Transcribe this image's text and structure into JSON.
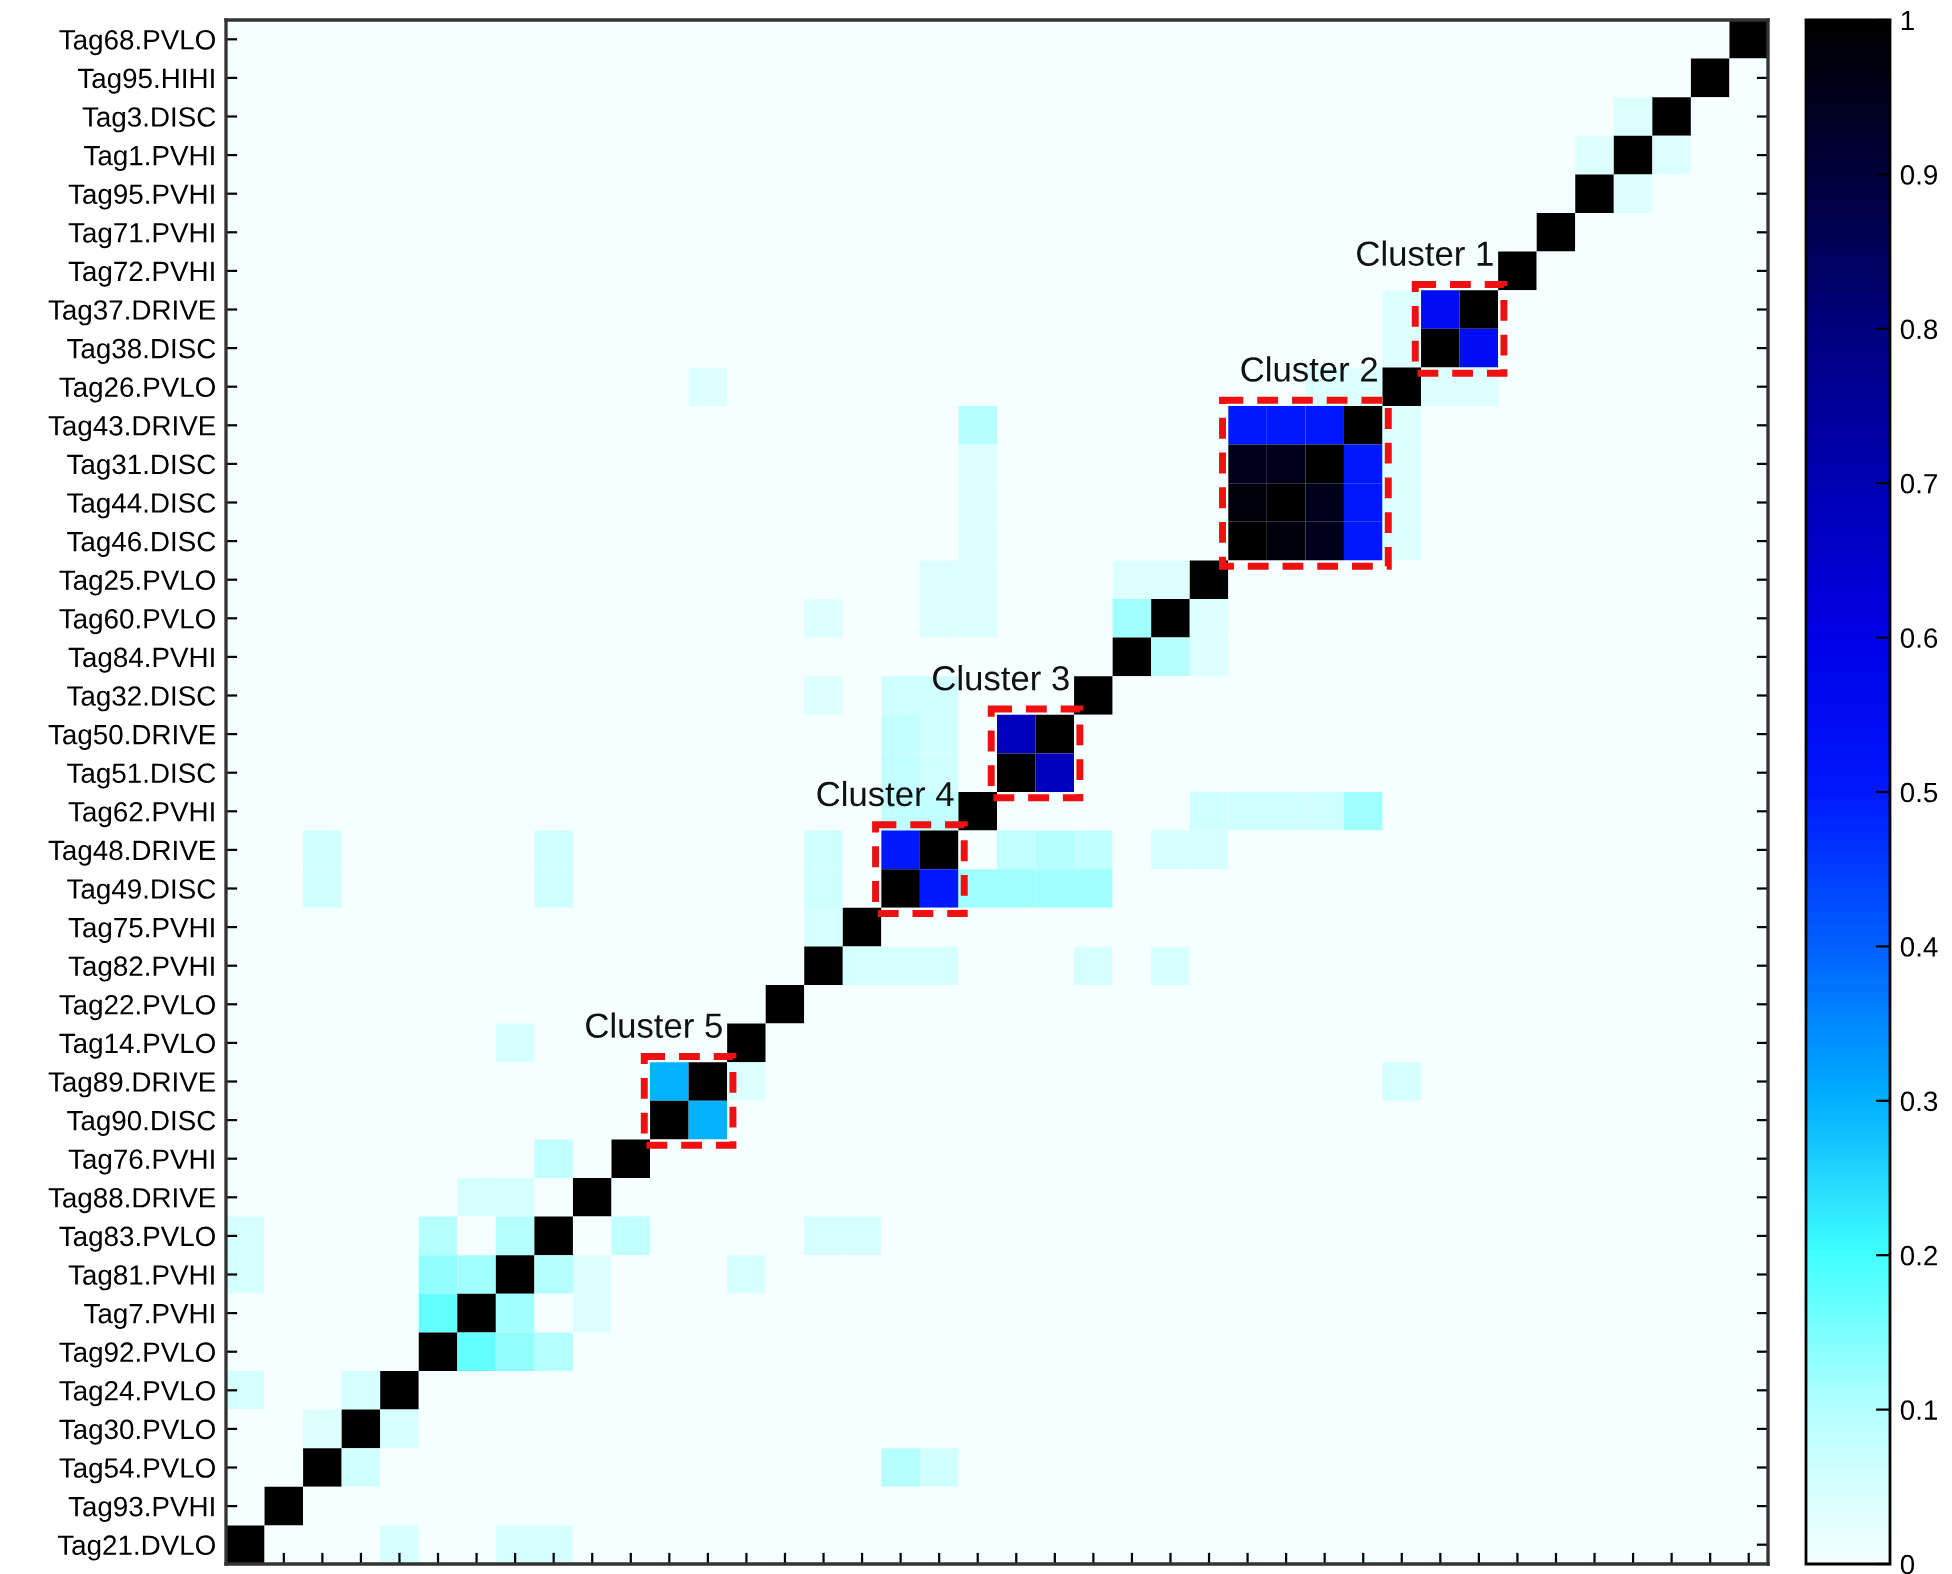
{
  "chart_data": {
    "type": "heatmap",
    "categories": [
      null,
      null,
      null,
      null,
      null,
      null,
      null,
      null,
      null,
      null,
      null,
      null,
      null,
      null,
      null,
      null,
      null,
      null,
      null,
      null,
      null,
      null,
      null,
      null,
      null,
      null,
      null,
      null,
      null,
      null,
      null,
      null,
      null,
      null,
      null,
      null,
      null,
      null,
      null,
      null
    ],
    "y_categories": [
      "Tag68.PVLO",
      "Tag95.HIHI",
      "Tag3.DISC",
      "Tag1.PVHI",
      "Tag95.PVHI",
      "Tag71.PVHI",
      "Tag72.PVHI",
      "Tag37.DRIVE",
      "Tag38.DISC",
      "Tag26.PVLO",
      "Tag43.DRIVE",
      "Tag31.DISC",
      "Tag44.DISC",
      "Tag46.DISC",
      "Tag25.PVLO",
      "Tag60.PVLO",
      "Tag84.PVHI",
      "Tag32.DISC",
      "Tag50.DRIVE",
      "Tag51.DISC",
      "Tag62.PVHI",
      "Tag48.DRIVE",
      "Tag49.DISC",
      "Tag75.PVHI",
      "Tag82.PVHI",
      "Tag22.PVLO",
      "Tag14.PVLO",
      "Tag89.DRIVE",
      "Tag90.DISC",
      "Tag76.PVHI",
      "Tag88.DRIVE",
      "Tag83.PVLO",
      "Tag81.PVHI",
      "Tag7.PVHI",
      "Tag92.PVLO",
      "Tag24.PVLO",
      "Tag30.PVLO",
      "Tag54.PVLO",
      "Tag93.PVHI",
      "Tag21.DVLO"
    ],
    "cells": [
      [
        0,
        0,
        0,
        0,
        0,
        0,
        0,
        0,
        0,
        0,
        0,
        0,
        0,
        0,
        0,
        0,
        0,
        0,
        0,
        0,
        0,
        0,
        0,
        0,
        0,
        0,
        0,
        0,
        0,
        0,
        0,
        0,
        0,
        0,
        0,
        0,
        0,
        0,
        0,
        1
      ],
      [
        0,
        0,
        0,
        0,
        0,
        0,
        0,
        0,
        0,
        0,
        0,
        0,
        0,
        0,
        0,
        0,
        0,
        0,
        0,
        0,
        0,
        0,
        0,
        0,
        0,
        0,
        0,
        0,
        0,
        0,
        0,
        0,
        0,
        0,
        0,
        0,
        0,
        0,
        1,
        0
      ],
      [
        0,
        0,
        0,
        0,
        0,
        0,
        0,
        0,
        0,
        0,
        0,
        0,
        0,
        0,
        0,
        0,
        0,
        0,
        0,
        0,
        0,
        0,
        0,
        0,
        0,
        0,
        0,
        0,
        0,
        0,
        0,
        0,
        0,
        0,
        0,
        0,
        0.04,
        1,
        0,
        0
      ],
      [
        0,
        0,
        0,
        0,
        0,
        0,
        0,
        0,
        0,
        0,
        0,
        0,
        0,
        0,
        0,
        0,
        0,
        0,
        0,
        0,
        0,
        0,
        0,
        0,
        0,
        0,
        0,
        0,
        0,
        0,
        0,
        0,
        0,
        0,
        0,
        0.04,
        1,
        0.04,
        0,
        0
      ],
      [
        0,
        0,
        0,
        0,
        0,
        0,
        0,
        0,
        0,
        0,
        0,
        0,
        0,
        0,
        0,
        0,
        0,
        0,
        0,
        0,
        0,
        0,
        0,
        0,
        0,
        0,
        0,
        0,
        0,
        0,
        0,
        0,
        0,
        0,
        0,
        1,
        0.04,
        0,
        0,
        0
      ],
      [
        0,
        0,
        0,
        0,
        0,
        0,
        0,
        0,
        0,
        0,
        0,
        0,
        0,
        0,
        0,
        0,
        0,
        0,
        0,
        0,
        0,
        0,
        0,
        0,
        0,
        0,
        0,
        0,
        0,
        0,
        0,
        0,
        0,
        0,
        1,
        0,
        0,
        0,
        0,
        0
      ],
      [
        0,
        0,
        0,
        0,
        0,
        0,
        0,
        0,
        0,
        0,
        0,
        0,
        0,
        0,
        0,
        0,
        0,
        0,
        0,
        0,
        0,
        0,
        0,
        0,
        0,
        0,
        0,
        0,
        0,
        0,
        0,
        0,
        0,
        1,
        0,
        0,
        0,
        0,
        0,
        0
      ],
      [
        0,
        0,
        0,
        0,
        0,
        0,
        0,
        0,
        0,
        0,
        0,
        0,
        0,
        0,
        0,
        0,
        0,
        0,
        0,
        0,
        0,
        0,
        0,
        0,
        0,
        0,
        0,
        0,
        0,
        0,
        0.04,
        0.55,
        1,
        0,
        0,
        0,
        0,
        0,
        0,
        0
      ],
      [
        0,
        0,
        0,
        0,
        0,
        0,
        0,
        0,
        0,
        0,
        0,
        0,
        0,
        0,
        0,
        0,
        0,
        0,
        0,
        0,
        0,
        0,
        0,
        0,
        0,
        0,
        0,
        0,
        0,
        0,
        0.04,
        1,
        0.55,
        0,
        0,
        0,
        0,
        0,
        0,
        0
      ],
      [
        0,
        0,
        0,
        0,
        0,
        0,
        0,
        0,
        0,
        0,
        0,
        0,
        0.04,
        0,
        0,
        0,
        0,
        0,
        0,
        0,
        0,
        0,
        0,
        0,
        0,
        0,
        0,
        0,
        0.04,
        0.04,
        1,
        0.04,
        0.04,
        0,
        0,
        0,
        0,
        0,
        0,
        0
      ],
      [
        0,
        0,
        0,
        0,
        0,
        0,
        0,
        0,
        0,
        0,
        0,
        0,
        0,
        0,
        0,
        0,
        0,
        0,
        0,
        0.1,
        0,
        0,
        0,
        0,
        0,
        0,
        0.5,
        0.5,
        0.5,
        1,
        0.04,
        0,
        0,
        0,
        0,
        0,
        0,
        0,
        0,
        0
      ],
      [
        0,
        0,
        0,
        0,
        0,
        0,
        0,
        0,
        0,
        0,
        0,
        0,
        0,
        0,
        0,
        0,
        0,
        0,
        0,
        0.04,
        0,
        0,
        0,
        0,
        0,
        0,
        0.95,
        0.95,
        1,
        0.5,
        0.04,
        0,
        0,
        0,
        0,
        0,
        0,
        0,
        0,
        0
      ],
      [
        0,
        0,
        0,
        0,
        0,
        0,
        0,
        0,
        0,
        0,
        0,
        0,
        0,
        0,
        0,
        0,
        0,
        0,
        0,
        0.04,
        0,
        0,
        0,
        0,
        0,
        0,
        0.98,
        1,
        0.95,
        0.5,
        0.04,
        0,
        0,
        0,
        0,
        0,
        0,
        0,
        0,
        0
      ],
      [
        0,
        0,
        0,
        0,
        0,
        0,
        0,
        0,
        0,
        0,
        0,
        0,
        0,
        0,
        0,
        0,
        0,
        0,
        0,
        0.04,
        0,
        0,
        0,
        0,
        0,
        0,
        1,
        0.98,
        0.95,
        0.5,
        0.04,
        0,
        0,
        0,
        0,
        0,
        0,
        0,
        0,
        0
      ],
      [
        0,
        0,
        0,
        0,
        0,
        0,
        0,
        0,
        0,
        0,
        0,
        0,
        0,
        0,
        0,
        0,
        0,
        0,
        0.04,
        0.04,
        0,
        0,
        0,
        0.04,
        0.04,
        1,
        0,
        0,
        0,
        0,
        0,
        0,
        0,
        0,
        0,
        0,
        0,
        0,
        0,
        0
      ],
      [
        0,
        0,
        0,
        0,
        0,
        0,
        0,
        0,
        0,
        0,
        0,
        0,
        0,
        0,
        0,
        0.04,
        0,
        0,
        0.04,
        0.04,
        0,
        0,
        0,
        0.12,
        1,
        0.04,
        0,
        0,
        0,
        0,
        0,
        0,
        0,
        0,
        0,
        0,
        0,
        0,
        0,
        0
      ],
      [
        0,
        0,
        0,
        0,
        0,
        0,
        0,
        0,
        0,
        0,
        0,
        0,
        0,
        0,
        0,
        0,
        0,
        0,
        0,
        0,
        0,
        0,
        0,
        1,
        0.1,
        0.04,
        0,
        0,
        0,
        0,
        0,
        0,
        0,
        0,
        0,
        0,
        0,
        0,
        0,
        0
      ],
      [
        0,
        0,
        0,
        0,
        0,
        0,
        0,
        0,
        0,
        0,
        0,
        0,
        0,
        0,
        0,
        0.04,
        0,
        0.06,
        0.06,
        0,
        0,
        0,
        1,
        0,
        0,
        0,
        0,
        0,
        0,
        0,
        0,
        0,
        0,
        0,
        0,
        0,
        0,
        0,
        0,
        0
      ],
      [
        0,
        0,
        0,
        0,
        0,
        0,
        0,
        0,
        0,
        0,
        0,
        0,
        0,
        0,
        0,
        0,
        0,
        0.08,
        0.06,
        0,
        0.68,
        1,
        0,
        0,
        0,
        0,
        0,
        0,
        0,
        0,
        0,
        0,
        0,
        0,
        0,
        0,
        0,
        0,
        0,
        0
      ],
      [
        0,
        0,
        0,
        0,
        0,
        0,
        0,
        0,
        0,
        0,
        0,
        0,
        0,
        0,
        0,
        0,
        0,
        0.08,
        0.06,
        0,
        1,
        0.68,
        0,
        0,
        0,
        0,
        0,
        0,
        0,
        0,
        0,
        0,
        0,
        0,
        0,
        0,
        0,
        0,
        0,
        0
      ],
      [
        0,
        0,
        0,
        0,
        0,
        0,
        0,
        0,
        0,
        0,
        0,
        0,
        0,
        0,
        0,
        0,
        0,
        0.08,
        0.08,
        1,
        0,
        0,
        0,
        0,
        0,
        0.06,
        0.06,
        0.06,
        0.06,
        0.12,
        0,
        0,
        0,
        0,
        0,
        0,
        0,
        0,
        0,
        0
      ],
      [
        0,
        0,
        0.06,
        0,
        0,
        0,
        0,
        0,
        0.06,
        0,
        0,
        0,
        0,
        0,
        0,
        0.06,
        0,
        0.5,
        1,
        0,
        0.08,
        0.1,
        0.08,
        0,
        0.05,
        0.05,
        0,
        0,
        0,
        0,
        0,
        0,
        0,
        0,
        0,
        0,
        0,
        0,
        0,
        0
      ],
      [
        0,
        0,
        0.06,
        0,
        0,
        0,
        0,
        0,
        0.06,
        0,
        0,
        0,
        0,
        0,
        0,
        0.06,
        0,
        1,
        0.5,
        0.12,
        0.12,
        0.12,
        0.12,
        0,
        0,
        0,
        0,
        0,
        0,
        0,
        0,
        0,
        0,
        0,
        0,
        0,
        0,
        0,
        0,
        0
      ],
      [
        0,
        0,
        0,
        0,
        0,
        0,
        0,
        0,
        0,
        0,
        0,
        0,
        0,
        0,
        0,
        0.05,
        1,
        0,
        0,
        0,
        0,
        0,
        0,
        0,
        0,
        0,
        0,
        0,
        0,
        0,
        0,
        0,
        0,
        0,
        0,
        0,
        0,
        0,
        0,
        0
      ],
      [
        0,
        0,
        0,
        0,
        0,
        0,
        0,
        0,
        0,
        0,
        0,
        0,
        0,
        0,
        0,
        1,
        0.05,
        0.05,
        0.05,
        0,
        0,
        0,
        0.05,
        0,
        0.05,
        0,
        0,
        0,
        0,
        0,
        0,
        0,
        0,
        0,
        0,
        0,
        0,
        0,
        0,
        0
      ],
      [
        0,
        0,
        0,
        0,
        0,
        0,
        0,
        0,
        0,
        0,
        0,
        0,
        0,
        0,
        1,
        0,
        0,
        0,
        0,
        0,
        0,
        0,
        0,
        0,
        0,
        0,
        0,
        0,
        0,
        0,
        0,
        0,
        0,
        0,
        0,
        0,
        0,
        0,
        0,
        0
      ],
      [
        0,
        0,
        0,
        0,
        0,
        0,
        0,
        0.05,
        0,
        0,
        0,
        0,
        0,
        1,
        0,
        0,
        0,
        0,
        0,
        0,
        0,
        0,
        0,
        0,
        0,
        0,
        0,
        0,
        0,
        0,
        0,
        0,
        0,
        0,
        0,
        0,
        0,
        0,
        0,
        0
      ],
      [
        0,
        0,
        0,
        0,
        0,
        0,
        0,
        0,
        0,
        0,
        0,
        0.3,
        1,
        0.04,
        0,
        0,
        0,
        0,
        0,
        0,
        0,
        0,
        0,
        0,
        0,
        0,
        0,
        0,
        0,
        0,
        0.05,
        0,
        0,
        0,
        0,
        0,
        0,
        0,
        0,
        0
      ],
      [
        0,
        0,
        0,
        0,
        0,
        0,
        0,
        0,
        0,
        0,
        0,
        1,
        0.3,
        0,
        0,
        0,
        0,
        0,
        0,
        0,
        0,
        0,
        0,
        0,
        0,
        0,
        0,
        0,
        0,
        0,
        0,
        0,
        0,
        0,
        0,
        0,
        0,
        0,
        0,
        0
      ],
      [
        0,
        0,
        0,
        0,
        0,
        0,
        0,
        0,
        0.08,
        0,
        1,
        0,
        0,
        0,
        0,
        0,
        0,
        0,
        0,
        0,
        0,
        0,
        0,
        0,
        0,
        0,
        0,
        0,
        0,
        0,
        0,
        0,
        0,
        0,
        0,
        0,
        0,
        0,
        0,
        0
      ],
      [
        0,
        0,
        0,
        0,
        0,
        0,
        0.05,
        0.05,
        0,
        1,
        0,
        0,
        0,
        0,
        0,
        0,
        0,
        0,
        0,
        0,
        0,
        0,
        0,
        0,
        0,
        0,
        0,
        0,
        0,
        0,
        0,
        0,
        0,
        0,
        0,
        0,
        0,
        0,
        0,
        0
      ],
      [
        0.05,
        0,
        0,
        0,
        0,
        0.1,
        0,
        0.1,
        1,
        0,
        0.08,
        0,
        0,
        0,
        0,
        0.05,
        0.05,
        0,
        0,
        0,
        0,
        0,
        0,
        0,
        0,
        0,
        0,
        0,
        0,
        0,
        0,
        0,
        0,
        0,
        0,
        0,
        0,
        0,
        0,
        0
      ],
      [
        0.05,
        0,
        0,
        0,
        0,
        0.13,
        0.12,
        1,
        0.1,
        0.04,
        0,
        0,
        0,
        0.05,
        0,
        0,
        0,
        0,
        0,
        0,
        0,
        0,
        0,
        0,
        0,
        0,
        0,
        0,
        0,
        0,
        0,
        0,
        0,
        0,
        0,
        0,
        0,
        0,
        0,
        0
      ],
      [
        0,
        0,
        0,
        0,
        0,
        0.17,
        1,
        0.12,
        0,
        0.04,
        0,
        0,
        0,
        0,
        0,
        0,
        0,
        0,
        0,
        0,
        0,
        0,
        0,
        0,
        0,
        0,
        0,
        0,
        0,
        0,
        0,
        0,
        0,
        0,
        0,
        0,
        0,
        0,
        0,
        0
      ],
      [
        0,
        0,
        0,
        0,
        0,
        1,
        0.17,
        0.13,
        0.1,
        0,
        0,
        0,
        0,
        0,
        0,
        0,
        0,
        0,
        0,
        0,
        0,
        0,
        0,
        0,
        0,
        0,
        0,
        0,
        0,
        0,
        0,
        0,
        0,
        0,
        0,
        0,
        0,
        0,
        0,
        0
      ],
      [
        0.05,
        0,
        0,
        0.05,
        1,
        0,
        0,
        0,
        0,
        0,
        0,
        0,
        0,
        0,
        0,
        0,
        0,
        0,
        0,
        0,
        0,
        0,
        0,
        0,
        0,
        0,
        0,
        0,
        0,
        0,
        0,
        0,
        0,
        0,
        0,
        0,
        0,
        0,
        0,
        0
      ],
      [
        0,
        0,
        0.04,
        1,
        0.05,
        0,
        0,
        0,
        0,
        0,
        0,
        0,
        0,
        0,
        0,
        0,
        0,
        0,
        0,
        0,
        0,
        0,
        0,
        0,
        0,
        0,
        0,
        0,
        0,
        0,
        0,
        0,
        0,
        0,
        0,
        0,
        0,
        0,
        0,
        0
      ],
      [
        0,
        0,
        1,
        0.06,
        0,
        0,
        0,
        0,
        0,
        0,
        0,
        0,
        0,
        0,
        0,
        0,
        0,
        0.1,
        0.06,
        0,
        0,
        0,
        0,
        0,
        0,
        0,
        0,
        0,
        0,
        0,
        0,
        0,
        0,
        0,
        0,
        0,
        0,
        0,
        0,
        0
      ],
      [
        0,
        1,
        0,
        0,
        0,
        0,
        0,
        0,
        0,
        0,
        0,
        0,
        0,
        0,
        0,
        0,
        0,
        0,
        0,
        0,
        0,
        0,
        0,
        0,
        0,
        0,
        0,
        0,
        0,
        0,
        0,
        0,
        0,
        0,
        0,
        0,
        0,
        0,
        0,
        0
      ],
      [
        1,
        0,
        0,
        0,
        0.05,
        0,
        0,
        0.05,
        0.05,
        0,
        0,
        0,
        0,
        0,
        0,
        0,
        0,
        0,
        0,
        0,
        0,
        0,
        0,
        0,
        0,
        0,
        0,
        0,
        0,
        0,
        0,
        0,
        0,
        0,
        0,
        0,
        0,
        0,
        0,
        0
      ]
    ],
    "clim": [
      0,
      1
    ],
    "cticks": [
      0,
      0.1,
      0.2,
      0.3,
      0.4,
      0.5,
      0.6,
      0.7,
      0.8,
      0.9,
      1
    ],
    "tick_labels": "y",
    "annotations": [
      "Cluster 1",
      "Cluster 2",
      "Cluster 3",
      "Cluster 4",
      "Cluster 5"
    ]
  }
}
